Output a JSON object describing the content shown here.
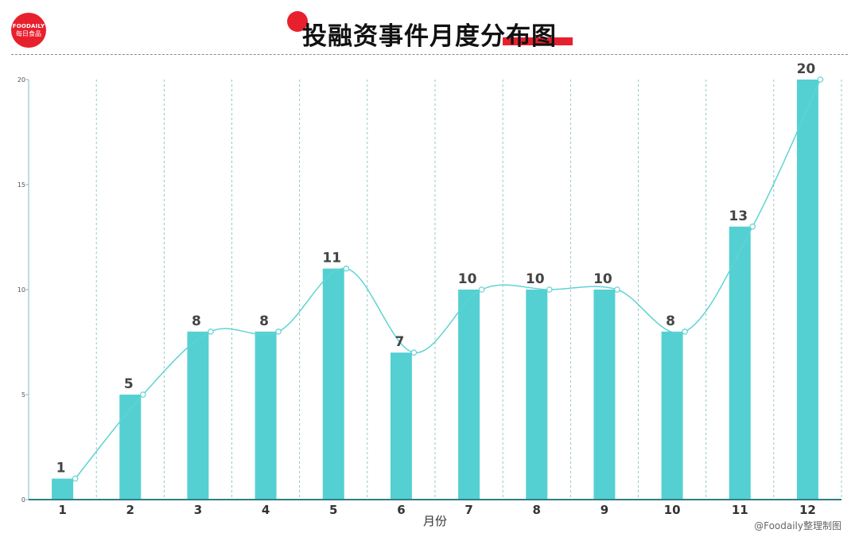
{
  "brand": {
    "logo_en": "FOODAILY",
    "logo_cn": "每日食品",
    "accent": "#e8202e"
  },
  "page_title": "投融资事件月度分布图",
  "credit": "@Foodaily整理制图",
  "chart_data": {
    "type": "bar",
    "title": "投融资事件月度分布图",
    "xlabel": "月份",
    "ylabel": "",
    "categories": [
      "1",
      "2",
      "3",
      "4",
      "5",
      "6",
      "7",
      "8",
      "9",
      "10",
      "11",
      "12"
    ],
    "values": [
      1,
      5,
      8,
      8,
      11,
      7,
      10,
      10,
      10,
      8,
      13,
      20
    ],
    "value_labels": [
      "1",
      "5",
      "8",
      "8",
      "11",
      "7",
      "10",
      "10",
      "10",
      "8",
      "13",
      "20"
    ],
    "ylim": [
      0,
      20
    ],
    "yticks": [
      0,
      5,
      10,
      15,
      20
    ],
    "ytick_labels": [
      "0",
      "5",
      "10",
      "15",
      "20"
    ],
    "bar_color": "#55d0d2",
    "line_color": "#5fd3d3",
    "overlay_line": true,
    "grid": "vertical-dashed",
    "legend": "none"
  }
}
